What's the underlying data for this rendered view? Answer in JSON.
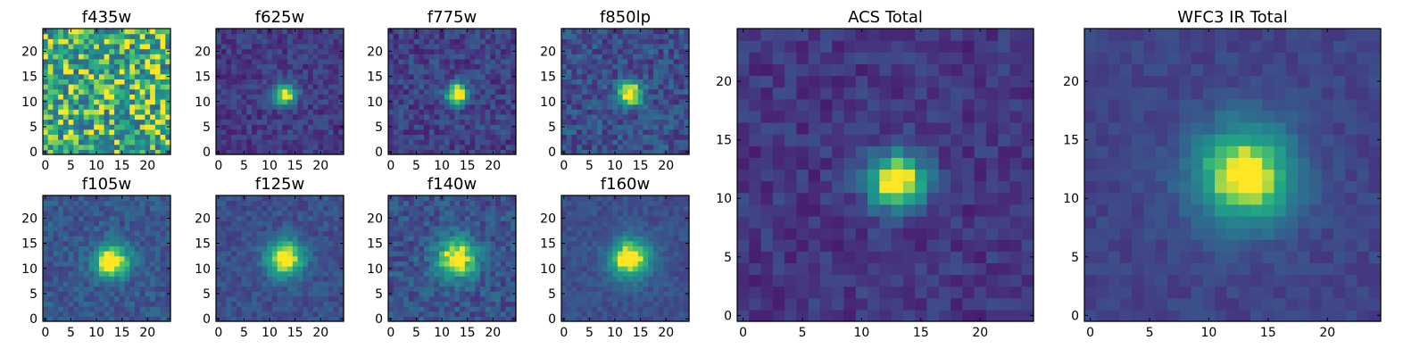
{
  "chart_data": [
    {
      "type": "heatmap",
      "title": "f435w",
      "colormap": "viridis",
      "xlim": [
        0,
        24
      ],
      "ylim": [
        0,
        24
      ],
      "xticks": [
        "0",
        "5",
        "10",
        "15",
        "20"
      ],
      "yticks": [
        "0",
        "5",
        "10",
        "15",
        "20"
      ],
      "grid": false,
      "source": {
        "center": [
          12,
          12
        ],
        "sigma": 1.4,
        "peak": 0.15,
        "background": 0.72,
        "noise": 0.34
      }
    },
    {
      "type": "heatmap",
      "title": "f625w",
      "colormap": "viridis",
      "xlim": [
        0,
        24
      ],
      "ylim": [
        0,
        24
      ],
      "xticks": [
        "0",
        "5",
        "10",
        "15",
        "20"
      ],
      "yticks": [
        "0",
        "5",
        "10",
        "15",
        "20"
      ],
      "grid": false,
      "source": {
        "center": [
          13,
          11.5
        ],
        "sigma": 1.5,
        "peak": 0.95,
        "background": 0.22,
        "noise": 0.12
      }
    },
    {
      "type": "heatmap",
      "title": "f775w",
      "colormap": "viridis",
      "xlim": [
        0,
        24
      ],
      "ylim": [
        0,
        24
      ],
      "xticks": [
        "0",
        "5",
        "10",
        "15",
        "20"
      ],
      "yticks": [
        "0",
        "5",
        "10",
        "15",
        "20"
      ],
      "grid": false,
      "source": {
        "center": [
          13,
          11.5
        ],
        "sigma": 1.5,
        "peak": 0.95,
        "background": 0.24,
        "noise": 0.14
      }
    },
    {
      "type": "heatmap",
      "title": "f850lp",
      "colormap": "viridis",
      "xlim": [
        0,
        24
      ],
      "ylim": [
        0,
        24
      ],
      "xticks": [
        "0",
        "5",
        "10",
        "15",
        "20"
      ],
      "yticks": [
        "0",
        "5",
        "10",
        "15",
        "20"
      ],
      "grid": false,
      "source": {
        "center": [
          13,
          11.5
        ],
        "sigma": 1.7,
        "peak": 0.9,
        "background": 0.3,
        "noise": 0.16
      }
    },
    {
      "type": "heatmap",
      "title": "f105w",
      "colormap": "viridis",
      "xlim": [
        0,
        24
      ],
      "ylim": [
        0,
        24
      ],
      "xticks": [
        "0",
        "5",
        "10",
        "15",
        "20"
      ],
      "yticks": [
        "0",
        "5",
        "10",
        "15",
        "20"
      ],
      "grid": false,
      "source": {
        "center": [
          13,
          11.5
        ],
        "sigma": 2.4,
        "peak": 0.85,
        "background": 0.34,
        "noise": 0.12
      }
    },
    {
      "type": "heatmap",
      "title": "f125w",
      "colormap": "viridis",
      "xlim": [
        0,
        24
      ],
      "ylim": [
        0,
        24
      ],
      "xticks": [
        "0",
        "5",
        "10",
        "15",
        "20"
      ],
      "yticks": [
        "0",
        "5",
        "10",
        "15",
        "20"
      ],
      "grid": false,
      "source": {
        "center": [
          13,
          12
        ],
        "sigma": 2.6,
        "peak": 0.85,
        "background": 0.3,
        "noise": 0.1
      }
    },
    {
      "type": "heatmap",
      "title": "f140w",
      "colormap": "viridis",
      "xlim": [
        0,
        24
      ],
      "ylim": [
        0,
        24
      ],
      "xticks": [
        "0",
        "5",
        "10",
        "15",
        "20"
      ],
      "yticks": [
        "0",
        "5",
        "10",
        "15",
        "20"
      ],
      "grid": false,
      "source": {
        "center": [
          13,
          12
        ],
        "sigma": 2.8,
        "peak": 0.8,
        "background": 0.32,
        "noise": 0.14
      }
    },
    {
      "type": "heatmap",
      "title": "f160w",
      "colormap": "viridis",
      "xlim": [
        0,
        24
      ],
      "ylim": [
        0,
        24
      ],
      "xticks": [
        "0",
        "5",
        "10",
        "15",
        "20"
      ],
      "yticks": [
        "0",
        "5",
        "10",
        "15",
        "20"
      ],
      "grid": false,
      "source": {
        "center": [
          13,
          12
        ],
        "sigma": 2.8,
        "peak": 0.85,
        "background": 0.3,
        "noise": 0.08
      }
    },
    {
      "type": "heatmap",
      "title": "ACS Total",
      "colormap": "viridis",
      "xlim": [
        0,
        24
      ],
      "ylim": [
        0,
        24
      ],
      "xticks": [
        "0",
        "5",
        "10",
        "15",
        "20"
      ],
      "yticks": [
        "0",
        "5",
        "10",
        "15",
        "20"
      ],
      "grid": false,
      "source": {
        "center": [
          13,
          11.5
        ],
        "sigma": 1.7,
        "peak": 0.95,
        "background": 0.2,
        "noise": 0.1
      }
    },
    {
      "type": "heatmap",
      "title": "WFC3 IR Total",
      "colormap": "viridis",
      "xlim": [
        0,
        24
      ],
      "ylim": [
        0,
        24
      ],
      "xticks": [
        "0",
        "5",
        "10",
        "15",
        "20"
      ],
      "yticks": [
        "0",
        "5",
        "10",
        "15",
        "20"
      ],
      "grid": false,
      "source": {
        "center": [
          13,
          12
        ],
        "sigma": 3.0,
        "peak": 0.85,
        "background": 0.25,
        "noise": 0.06
      }
    }
  ]
}
